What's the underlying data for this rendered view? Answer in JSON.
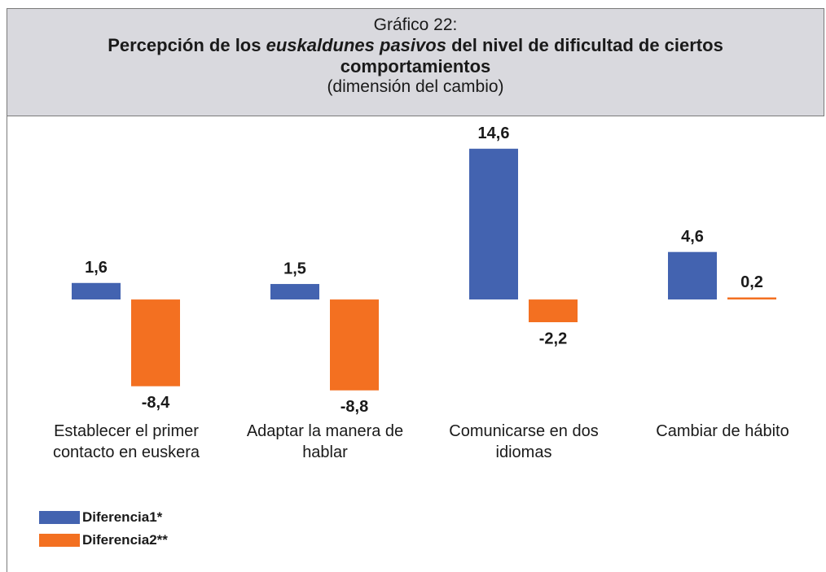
{
  "chart_data": {
    "type": "bar",
    "supertitle": "Gráfico 22:",
    "title": {
      "before": "Percepción de los",
      "italic": "euskaldunes pasivos",
      "after": "del nivel de dificultad de ciertos comportamientos"
    },
    "subtitle": "(dimensión del cambio)",
    "categories": [
      "Establecer el primer contacto en euskera",
      "Adaptar la manera de hablar",
      "Comunicarse en dos idiomas",
      "Cambiar de hábito"
    ],
    "series": [
      {
        "name": "Diferencia1*",
        "color": "#4363b0",
        "values": [
          1.6,
          1.5,
          14.6,
          4.6
        ],
        "value_labels": [
          "1,6",
          "1,5",
          "14,6",
          "4,6"
        ]
      },
      {
        "name": "Diferencia2**",
        "color": "#f37021",
        "values": [
          -8.4,
          -8.8,
          -2.2,
          0.2
        ],
        "value_labels": [
          "-8,4",
          "-8,8",
          "-2,2",
          "0,2"
        ]
      }
    ],
    "ylim": [
      -10,
      16
    ],
    "legend": "bottom-left"
  }
}
